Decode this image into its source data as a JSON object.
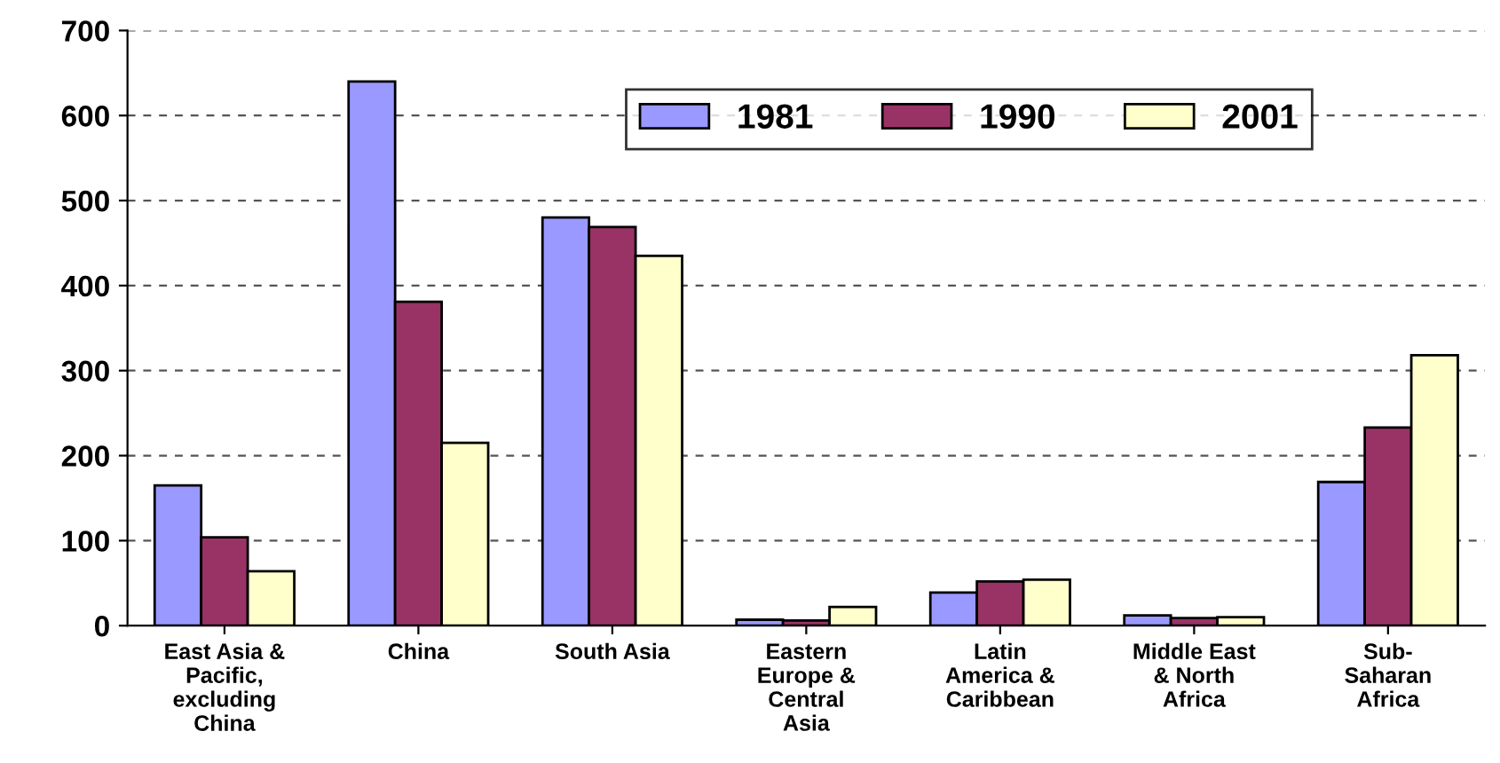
{
  "chart_data": {
    "type": "bar",
    "categories": [
      "East Asia &\nPacific,\nexcluding\nChina",
      "China",
      "South Asia",
      "Eastern\nEurope &\nCentral\nAsia",
      "Latin\nAmerica &\nCaribbean",
      "Middle East\n& North\nAfrica",
      "Sub-\nSaharan\nAfrica"
    ],
    "series": [
      {
        "name": "1981",
        "color": "#9999ff",
        "values": [
          165,
          640,
          480,
          7,
          39,
          12,
          169
        ]
      },
      {
        "name": "1990",
        "color": "#993366",
        "values": [
          104,
          381,
          469,
          6,
          52,
          9,
          233
        ]
      },
      {
        "name": "2001",
        "color": "#ffffcc",
        "values": [
          64,
          215,
          435,
          22,
          54,
          10,
          318
        ]
      }
    ],
    "ylim": [
      0,
      700
    ],
    "yticks": [
      0,
      100,
      200,
      300,
      400,
      500,
      600,
      700
    ],
    "grid": "y",
    "legend": "top"
  }
}
